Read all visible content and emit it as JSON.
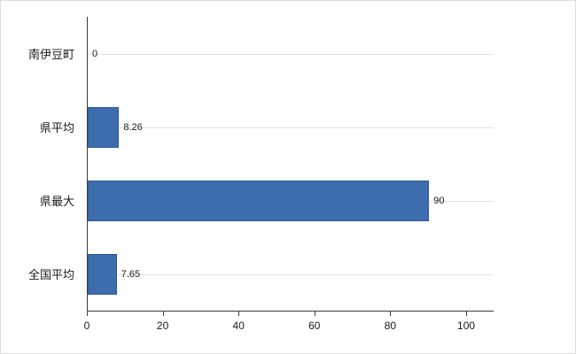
{
  "chart_data": {
    "type": "bar",
    "orientation": "horizontal",
    "title": "",
    "xlabel": "",
    "ylabel": "",
    "categories": [
      "南伊豆町",
      "県平均",
      "県最大",
      "全国平均"
    ],
    "values": [
      0,
      8.26,
      90,
      7.65
    ],
    "value_labels": [
      "0",
      "8.26",
      "90",
      "7.65"
    ],
    "xlim": [
      0,
      100
    ],
    "x_ticks": [
      "0",
      "20",
      "40",
      "60",
      "80",
      "100"
    ],
    "x_tick_values": [
      0,
      20,
      40,
      60,
      80,
      100
    ],
    "grid": "horizontal category gridlines, light gray",
    "legend": "none",
    "bar_color": "#3d6dad",
    "bar_border_color": "#2e5a95",
    "axis_color": "#3c3c3c",
    "gridline_color": "#e2e2e6",
    "background_color": "#ffffff"
  }
}
